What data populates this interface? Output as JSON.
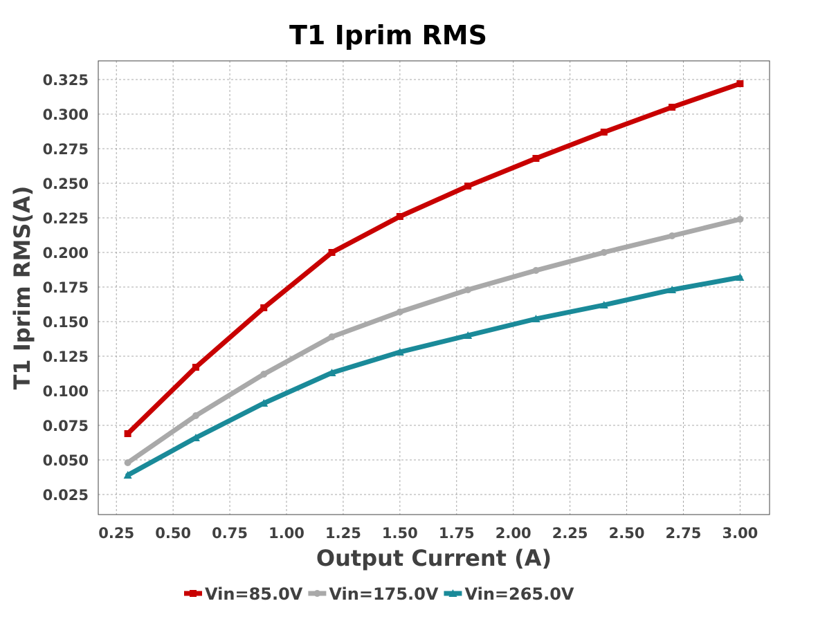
{
  "chart_data": {
    "type": "line",
    "title": "T1 Iprim RMS",
    "xlabel": "Output Current (A)",
    "ylabel": "T1 Iprim RMS(A)",
    "xlim": [
      0.17,
      3.13
    ],
    "ylim": [
      0.0105,
      0.3385
    ],
    "x_ticks": [
      "0.25",
      "0.50",
      "0.75",
      "1.00",
      "1.25",
      "1.50",
      "1.75",
      "2.00",
      "2.25",
      "2.50",
      "2.75",
      "3.00"
    ],
    "y_ticks": [
      "0.025",
      "0.050",
      "0.075",
      "0.100",
      "0.125",
      "0.150",
      "0.175",
      "0.200",
      "0.225",
      "0.250",
      "0.275",
      "0.300",
      "0.325"
    ],
    "grid": true,
    "legend_position": "bottom-center",
    "x": [
      0.3,
      0.6,
      0.9,
      1.2,
      1.5,
      1.8,
      2.1,
      2.4,
      2.7,
      3.0
    ],
    "series": [
      {
        "name": "Vin=85.0V",
        "color": "#c80000",
        "marker": "square",
        "values": [
          0.069,
          0.117,
          0.16,
          0.2,
          0.226,
          0.248,
          0.268,
          0.287,
          0.305,
          0.322
        ]
      },
      {
        "name": "Vin=175.0V",
        "color": "#a9a9a9",
        "marker": "circle",
        "values": [
          0.048,
          0.082,
          0.112,
          0.139,
          0.157,
          0.173,
          0.187,
          0.2,
          0.212,
          0.224
        ]
      },
      {
        "name": "Vin=265.0V",
        "color": "#1a8a99",
        "marker": "triangle",
        "values": [
          0.039,
          0.066,
          0.091,
          0.113,
          0.128,
          0.14,
          0.152,
          0.162,
          0.173,
          0.182
        ]
      }
    ]
  }
}
